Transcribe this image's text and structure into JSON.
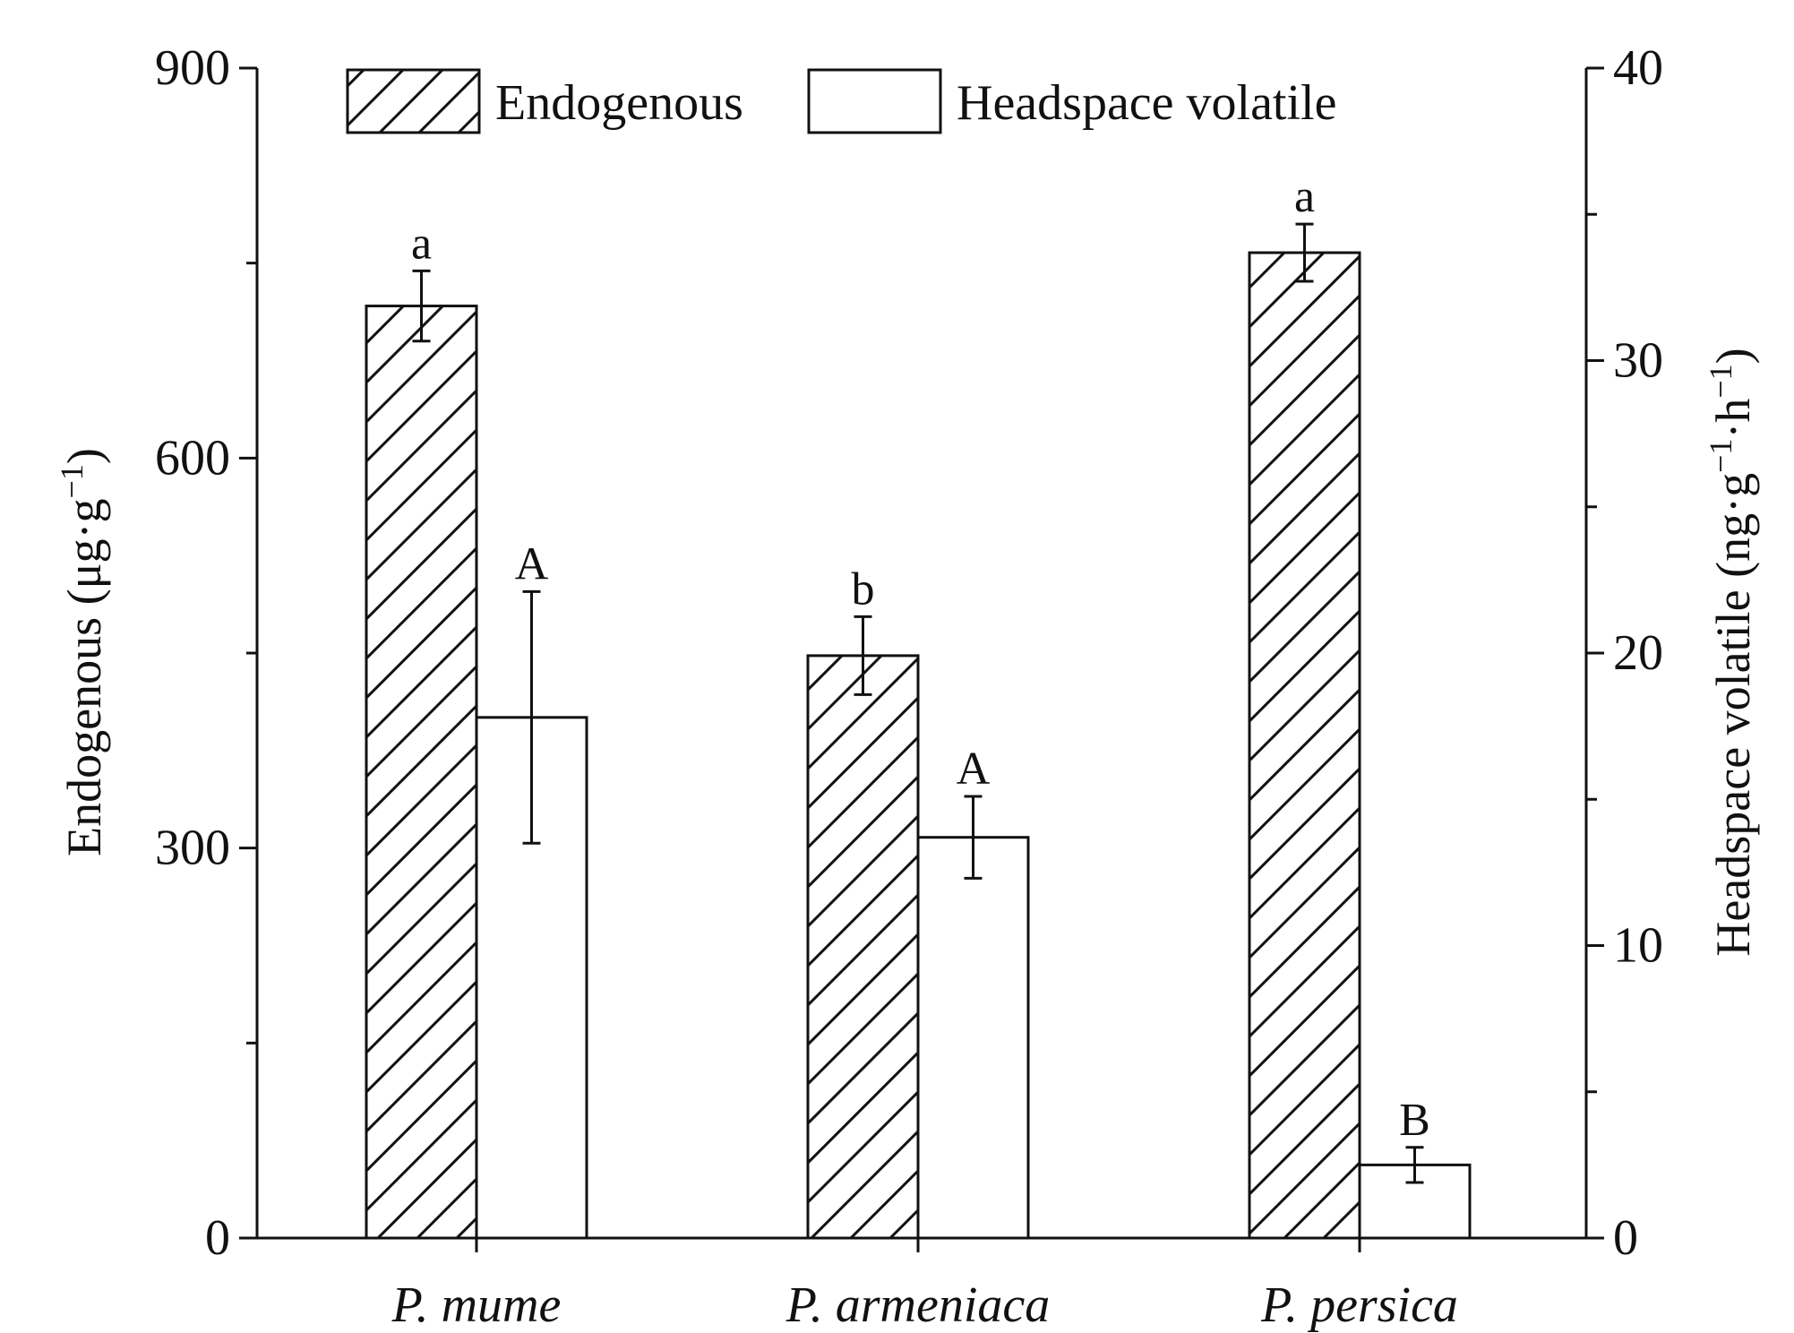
{
  "chart_data": {
    "type": "bar",
    "categories": [
      "P. mume",
      "P. armeniaca",
      "P. persica"
    ],
    "series": [
      {
        "name": "Endogenous",
        "axis": "left",
        "pattern": "hatched",
        "values": [
          717,
          448,
          758
        ],
        "errors": [
          27,
          30,
          22
        ],
        "significance": [
          "a",
          "b",
          "a"
        ]
      },
      {
        "name": "Headspace volatile",
        "axis": "right",
        "pattern": "open",
        "values": [
          17.8,
          13.7,
          2.5
        ],
        "errors": [
          4.3,
          1.4,
          0.6
        ],
        "significance": [
          "A",
          "A",
          "B"
        ]
      }
    ],
    "left_axis": {
      "title_main": "Endogenous (μg·g",
      "title_sup": "−1",
      "title_end": ")",
      "ylim": [
        0,
        900
      ],
      "ticks": [
        "0",
        "300",
        "600",
        "900"
      ]
    },
    "right_axis": {
      "title_main": "Headspace volatile (ng·g",
      "title_sup1": "−1",
      "title_mid": "·h",
      "title_sup2": "−1",
      "title_end": ")",
      "ylim": [
        0,
        40
      ],
      "ticks": [
        "0",
        "10",
        "20",
        "30",
        "40"
      ]
    },
    "legend": {
      "position": "top-center",
      "items": [
        "Endogenous",
        "Headspace volatile"
      ]
    },
    "colors": {
      "line": "#111111",
      "fill": "#ffffff"
    },
    "grid": false
  }
}
